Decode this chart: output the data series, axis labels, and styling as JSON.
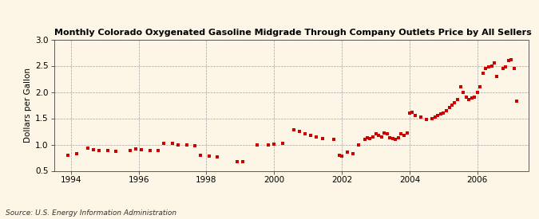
{
  "title": "Monthly Colorado Oxygenated Gasoline Midgrade Through Company Outlets Price by All Sellers",
  "ylabel": "Dollars per Gallon",
  "source": "Source: U.S. Energy Information Administration",
  "background_color": "#fdf5e6",
  "marker_color": "#cc0000",
  "xlim": [
    1993.5,
    2007.5
  ],
  "ylim": [
    0.5,
    3.0
  ],
  "yticks": [
    0.5,
    1.0,
    1.5,
    2.0,
    2.5,
    3.0
  ],
  "xticks": [
    1994,
    1996,
    1998,
    2000,
    2002,
    2004,
    2006
  ],
  "data": [
    [
      1993.92,
      0.8
    ],
    [
      1994.17,
      0.83
    ],
    [
      1994.5,
      0.93
    ],
    [
      1994.67,
      0.9
    ],
    [
      1994.83,
      0.88
    ],
    [
      1995.08,
      0.88
    ],
    [
      1995.33,
      0.87
    ],
    [
      1995.75,
      0.89
    ],
    [
      1995.92,
      0.91
    ],
    [
      1996.08,
      0.9
    ],
    [
      1996.33,
      0.88
    ],
    [
      1996.58,
      0.88
    ],
    [
      1996.75,
      1.02
    ],
    [
      1997.0,
      1.03
    ],
    [
      1997.17,
      1.0
    ],
    [
      1997.42,
      0.99
    ],
    [
      1997.67,
      0.98
    ],
    [
      1997.83,
      0.8
    ],
    [
      1998.08,
      0.78
    ],
    [
      1998.33,
      0.77
    ],
    [
      1998.92,
      0.67
    ],
    [
      1999.08,
      0.67
    ],
    [
      1999.5,
      0.99
    ],
    [
      1999.83,
      1.0
    ],
    [
      2000.0,
      1.01
    ],
    [
      2000.25,
      1.03
    ],
    [
      2000.58,
      1.28
    ],
    [
      2000.75,
      1.25
    ],
    [
      2000.92,
      1.2
    ],
    [
      2001.08,
      1.17
    ],
    [
      2001.25,
      1.15
    ],
    [
      2001.42,
      1.12
    ],
    [
      2001.75,
      1.1
    ],
    [
      2001.92,
      0.8
    ],
    [
      2002.0,
      0.78
    ],
    [
      2002.17,
      0.85
    ],
    [
      2002.33,
      0.83
    ],
    [
      2002.5,
      1.0
    ],
    [
      2002.67,
      1.1
    ],
    [
      2002.75,
      1.13
    ],
    [
      2002.83,
      1.12
    ],
    [
      2002.92,
      1.15
    ],
    [
      2003.0,
      1.2
    ],
    [
      2003.08,
      1.18
    ],
    [
      2003.17,
      1.15
    ],
    [
      2003.25,
      1.22
    ],
    [
      2003.33,
      1.2
    ],
    [
      2003.42,
      1.13
    ],
    [
      2003.5,
      1.12
    ],
    [
      2003.58,
      1.1
    ],
    [
      2003.67,
      1.13
    ],
    [
      2003.75,
      1.2
    ],
    [
      2003.83,
      1.18
    ],
    [
      2003.92,
      1.22
    ],
    [
      2004.0,
      1.6
    ],
    [
      2004.08,
      1.62
    ],
    [
      2004.17,
      1.55
    ],
    [
      2004.33,
      1.52
    ],
    [
      2004.5,
      1.48
    ],
    [
      2004.67,
      1.5
    ],
    [
      2004.75,
      1.53
    ],
    [
      2004.83,
      1.55
    ],
    [
      2004.92,
      1.58
    ],
    [
      2005.0,
      1.6
    ],
    [
      2005.08,
      1.65
    ],
    [
      2005.17,
      1.7
    ],
    [
      2005.25,
      1.75
    ],
    [
      2005.33,
      1.8
    ],
    [
      2005.42,
      1.85
    ],
    [
      2005.5,
      2.1
    ],
    [
      2005.58,
      2.0
    ],
    [
      2005.67,
      1.9
    ],
    [
      2005.75,
      1.85
    ],
    [
      2005.83,
      1.88
    ],
    [
      2005.92,
      1.9
    ],
    [
      2006.0,
      2.0
    ],
    [
      2006.08,
      2.1
    ],
    [
      2006.17,
      2.35
    ],
    [
      2006.25,
      2.45
    ],
    [
      2006.33,
      2.48
    ],
    [
      2006.42,
      2.5
    ],
    [
      2006.5,
      2.55
    ],
    [
      2006.58,
      2.3
    ],
    [
      2006.75,
      2.45
    ],
    [
      2006.83,
      2.48
    ],
    [
      2006.92,
      2.6
    ],
    [
      2007.0,
      2.62
    ],
    [
      2007.08,
      2.45
    ],
    [
      2007.17,
      1.82
    ]
  ]
}
